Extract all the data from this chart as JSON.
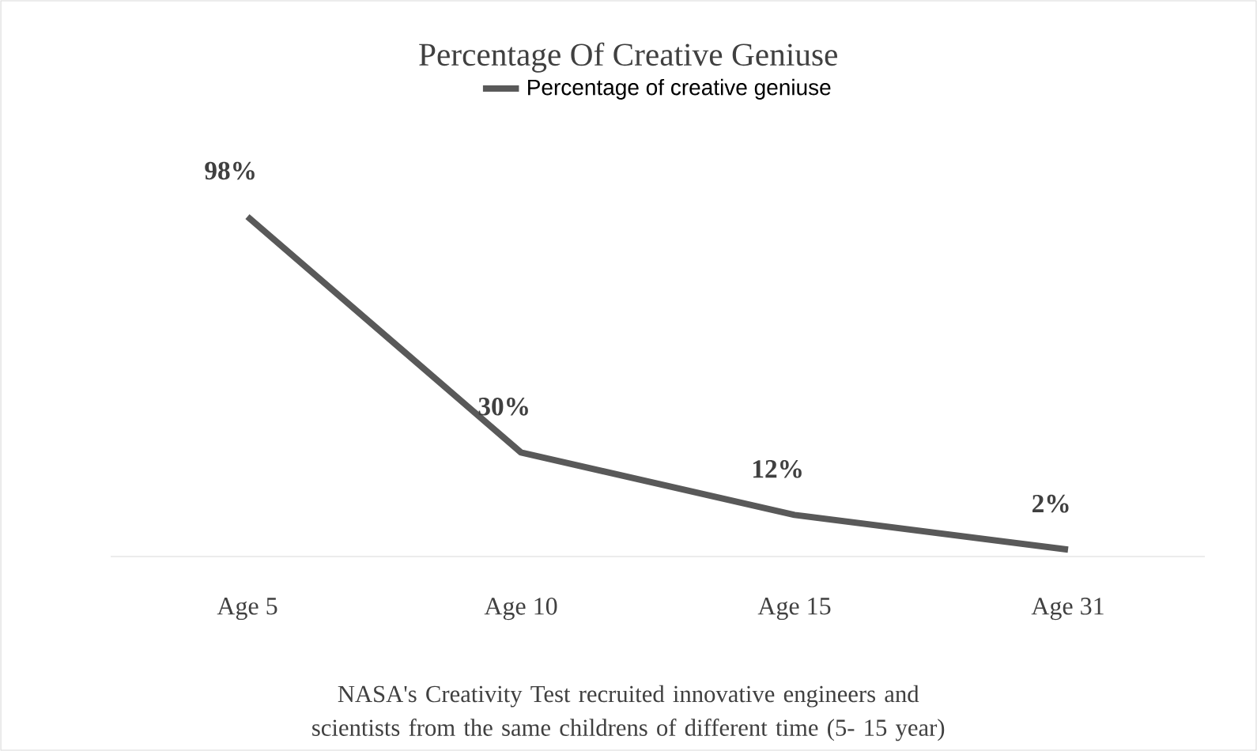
{
  "chart_data": {
    "type": "line",
    "title": "Percentage Of Creative Geniuse",
    "categories": [
      "Age 5",
      "Age 10",
      "Age 15",
      "Age 31"
    ],
    "series": [
      {
        "name": "Percentage of creative geniuse",
        "color": "#595959",
        "values": [
          98,
          30,
          12,
          2
        ],
        "value_labels": [
          "98%",
          "30%",
          "12%",
          "2%"
        ]
      }
    ],
    "legend": "top",
    "annotations": [
      "NASA's Creativity Test recruited innovative engineers and scientists from the same childrens of different time (5- 15 year)"
    ]
  }
}
